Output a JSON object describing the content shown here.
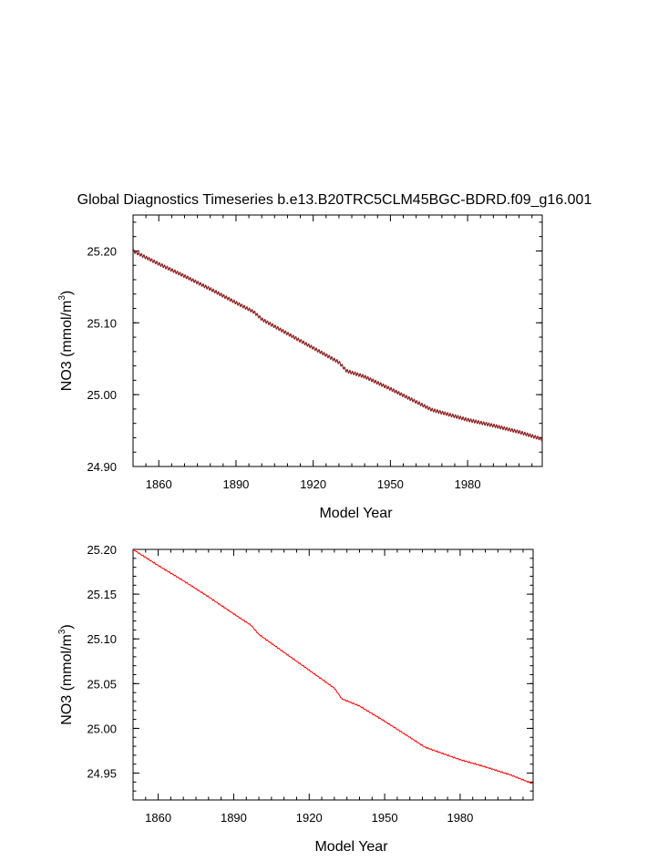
{
  "title": "Global Diagnostics Timeseries b.e13.B20TRC5CLM45BGC-BDRD.f09_g16.001",
  "chart_data": [
    {
      "type": "line",
      "xlabel": "Model Year",
      "ylabel_main": "NO3 (mmol/m",
      "ylabel_sup": "3",
      "ylabel_close": ")",
      "xlim": [
        1850,
        2009
      ],
      "ylim": [
        24.9,
        25.25
      ],
      "xticks": [
        1860,
        1890,
        1920,
        1950,
        1980
      ],
      "xtick_labels": [
        "1860",
        "1890",
        "1920",
        "1950",
        "1980"
      ],
      "yticks": [
        24.9,
        25.0,
        25.1,
        25.2
      ],
      "ytick_labels": [
        "24.90",
        "25.00",
        "25.10",
        "25.20"
      ],
      "seasonal_amplitude": 0.0022,
      "series": [
        {
          "color": "#8b1a1a",
          "x": [
            1850,
            1860,
            1870,
            1880,
            1890,
            1897,
            1900,
            1910,
            1920,
            1930,
            1933,
            1940,
            1950,
            1960,
            1966,
            1970,
            1980,
            1990,
            2000,
            2009
          ],
          "y": [
            25.2,
            25.182,
            25.165,
            25.147,
            25.128,
            25.115,
            25.105,
            25.085,
            25.065,
            25.045,
            25.033,
            25.025,
            25.008,
            24.99,
            24.979,
            24.975,
            24.965,
            24.957,
            24.948,
            24.938
          ]
        }
      ]
    },
    {
      "type": "line",
      "xlabel": "Model Year",
      "ylabel_main": "NO3 (mmol/m",
      "ylabel_sup": "3",
      "ylabel_close": ")",
      "xlim": [
        1850,
        2009
      ],
      "ylim": [
        24.92,
        25.2
      ],
      "xticks": [
        1860,
        1890,
        1920,
        1950,
        1980
      ],
      "xtick_labels": [
        "1860",
        "1890",
        "1920",
        "1950",
        "1980"
      ],
      "yticks": [
        24.95,
        25.0,
        25.05,
        25.1,
        25.15,
        25.2
      ],
      "ytick_labels": [
        "24.95",
        "25.00",
        "25.05",
        "25.10",
        "25.15",
        "25.20"
      ],
      "series": [
        {
          "color": "#ff0000",
          "x": [
            1850,
            1860,
            1870,
            1880,
            1890,
            1897,
            1900,
            1910,
            1920,
            1930,
            1933,
            1940,
            1950,
            1960,
            1966,
            1970,
            1980,
            1990,
            2000,
            2009
          ],
          "y": [
            25.2,
            25.182,
            25.165,
            25.147,
            25.128,
            25.115,
            25.105,
            25.085,
            25.065,
            25.045,
            25.033,
            25.025,
            25.008,
            24.99,
            24.979,
            24.975,
            24.965,
            24.957,
            24.948,
            24.938
          ]
        }
      ]
    }
  ]
}
